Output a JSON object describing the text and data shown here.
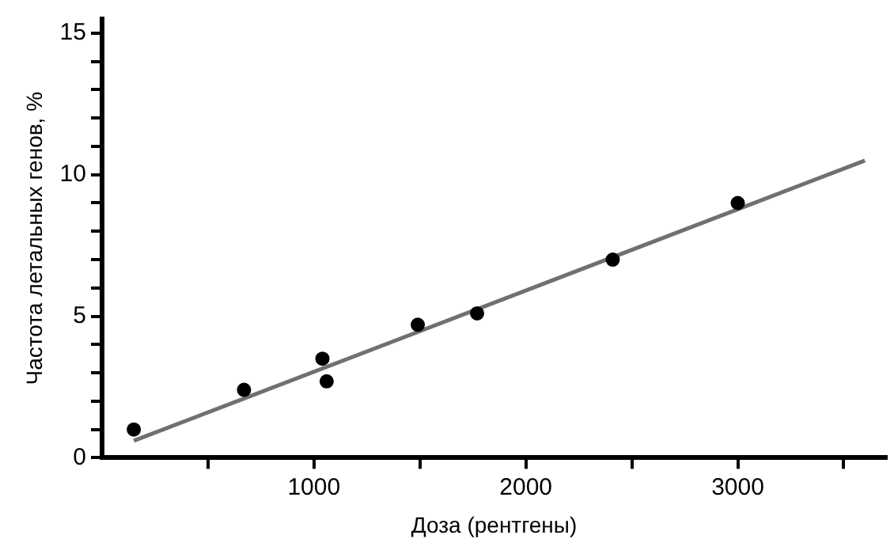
{
  "chart_data": {
    "type": "scatter",
    "xlabel": "Доза (рентгены)",
    "ylabel": "Частота летальных генов, %",
    "xlim": [
      0,
      3700
    ],
    "ylim": [
      0,
      15.5
    ],
    "xticks": [
      {
        "value": 500,
        "label": null
      },
      1000,
      {
        "value": 1500,
        "label": null
      },
      2000,
      {
        "value": 2500,
        "label": null
      },
      3000,
      {
        "value": 3500,
        "label": null
      }
    ],
    "yticks": [
      0,
      {
        "value": 1,
        "label": null
      },
      {
        "value": 2,
        "label": null
      },
      {
        "value": 3,
        "label": null
      },
      {
        "value": 4,
        "label": null
      },
      5,
      {
        "value": 6,
        "label": null
      },
      {
        "value": 7,
        "label": null
      },
      {
        "value": 8,
        "label": null
      },
      {
        "value": 9,
        "label": null
      },
      10,
      {
        "value": 11,
        "label": null
      },
      {
        "value": 12,
        "label": null
      },
      {
        "value": 13,
        "label": null
      },
      {
        "value": 14,
        "label": null
      },
      15
    ],
    "marker": "circle",
    "grid": false,
    "legend": false,
    "series": [
      {
        "color": "#000000",
        "x": [
          150,
          670,
          1040,
          1060,
          1490,
          1770,
          2410,
          3000
        ],
        "values": [
          1.0,
          2.4,
          3.5,
          2.7,
          4.7,
          5.1,
          7.0,
          9.0
        ]
      },
      {
        "type": "line",
        "color": "#707070",
        "line_style": "solid",
        "marker": "none",
        "x": [
          150,
          3600
        ],
        "values": [
          0.6,
          10.5
        ]
      }
    ]
  }
}
